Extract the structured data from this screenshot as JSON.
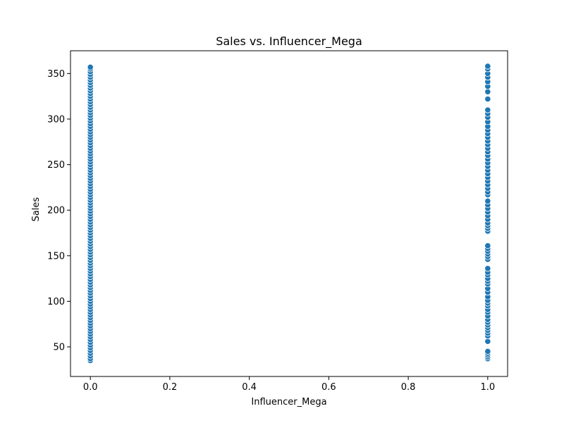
{
  "chart_data": {
    "type": "scatter",
    "title": "Sales vs. Influencer_Mega",
    "xlabel": "Influencer_Mega",
    "ylabel": "Sales",
    "xlim": [
      -0.05,
      1.05
    ],
    "ylim": [
      17.5,
      375
    ],
    "xticks": [
      "0.0",
      "0.2",
      "0.4",
      "0.6",
      "0.8",
      "1.0"
    ],
    "xtick_values": [
      0.0,
      0.2,
      0.4,
      0.6,
      0.8,
      1.0
    ],
    "yticks": [
      "50",
      "100",
      "150",
      "200",
      "250",
      "300",
      "350"
    ],
    "ytick_values": [
      50,
      100,
      150,
      200,
      250,
      300,
      350
    ],
    "grid": false,
    "color": "#1f77b4",
    "series": [
      {
        "x": 0,
        "y": [
          35,
          37,
          40,
          43,
          46,
          49,
          52,
          55,
          58,
          61,
          64,
          67,
          70,
          73,
          76,
          79,
          82,
          85,
          88,
          91,
          94,
          97,
          100,
          103,
          106,
          109,
          112,
          115,
          118,
          121,
          124,
          127,
          130,
          133,
          136,
          139,
          142,
          145,
          148,
          151,
          154,
          157,
          160,
          163,
          166,
          169,
          172,
          175,
          178,
          181,
          184,
          187,
          190,
          193,
          196,
          199,
          202,
          205,
          208,
          211,
          214,
          217,
          220,
          223,
          226,
          229,
          232,
          235,
          238,
          241,
          244,
          247,
          250,
          253,
          256,
          259,
          262,
          265,
          268,
          271,
          274,
          277,
          280,
          283,
          286,
          289,
          292,
          295,
          298,
          301,
          304,
          307,
          310,
          313,
          316,
          319,
          322,
          325,
          328,
          331,
          334,
          337,
          340,
          343,
          346,
          349,
          352,
          355,
          357
        ]
      },
      {
        "x": 1,
        "y": [
          37,
          39,
          41,
          43,
          45,
          56,
          62,
          65,
          68,
          71,
          74,
          77,
          80,
          84,
          88,
          91,
          95,
          98,
          101,
          105,
          110,
          114,
          119,
          122,
          125,
          129,
          132,
          136,
          146,
          149,
          152,
          155,
          158,
          161,
          177,
          180,
          183,
          186,
          190,
          194,
          198,
          202,
          206,
          210,
          217,
          220,
          224,
          228,
          232,
          236,
          240,
          244,
          248,
          252,
          256,
          260,
          264,
          268,
          272,
          276,
          280,
          284,
          288,
          292,
          297,
          302,
          306,
          310,
          322,
          330,
          336,
          341,
          346,
          350,
          355,
          358
        ]
      }
    ]
  }
}
